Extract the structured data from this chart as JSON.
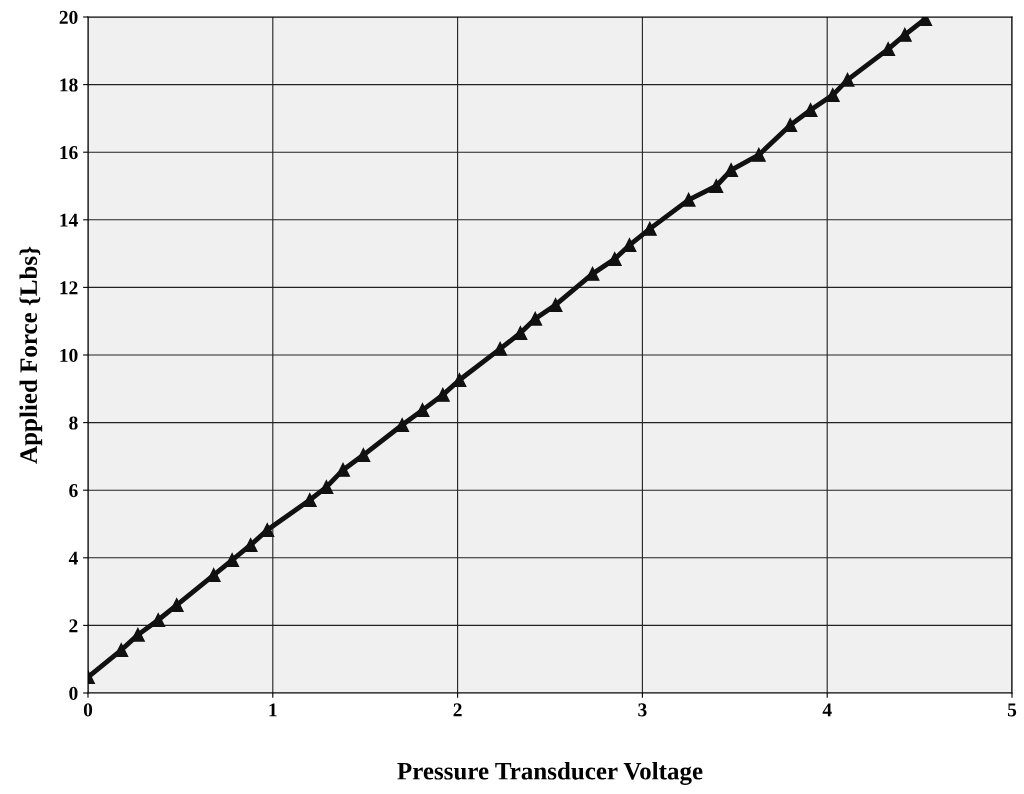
{
  "chart_data": {
    "type": "line",
    "xlabel": "Pressure Transducer Voltage",
    "ylabel": "Applied Force {Lbs}",
    "series": [
      {
        "color": "#111111",
        "marker": "triangle",
        "x": [
          0.0,
          0.18,
          0.27,
          0.38,
          0.48,
          0.68,
          0.78,
          0.88,
          0.97,
          1.2,
          1.29,
          1.38,
          1.49,
          1.7,
          1.81,
          1.92,
          2.01,
          2.23,
          2.34,
          2.42,
          2.53,
          2.73,
          2.85,
          2.93,
          3.04,
          3.25,
          3.4,
          3.48,
          3.63,
          3.8,
          3.91,
          4.03,
          4.11,
          4.33,
          4.42,
          4.53
        ],
        "values": [
          0.47,
          1.27,
          1.72,
          2.16,
          2.6,
          3.49,
          3.93,
          4.38,
          4.82,
          5.71,
          6.09,
          6.6,
          7.04,
          7.93,
          8.37,
          8.82,
          9.26,
          10.18,
          10.65,
          11.07,
          11.48,
          12.4,
          12.84,
          13.25,
          13.73,
          14.59,
          15.0,
          15.47,
          15.92,
          16.8,
          17.25,
          17.69,
          18.14,
          19.05,
          19.47,
          19.94
        ]
      }
    ],
    "xlim": [
      0,
      5
    ],
    "xticks": [
      0,
      1,
      2,
      3,
      4,
      5
    ],
    "ylim": [
      0,
      20
    ],
    "yticks": [
      0,
      2,
      4,
      6,
      8,
      10,
      12,
      14,
      16,
      18,
      20
    ],
    "grid": true,
    "legend": false
  }
}
